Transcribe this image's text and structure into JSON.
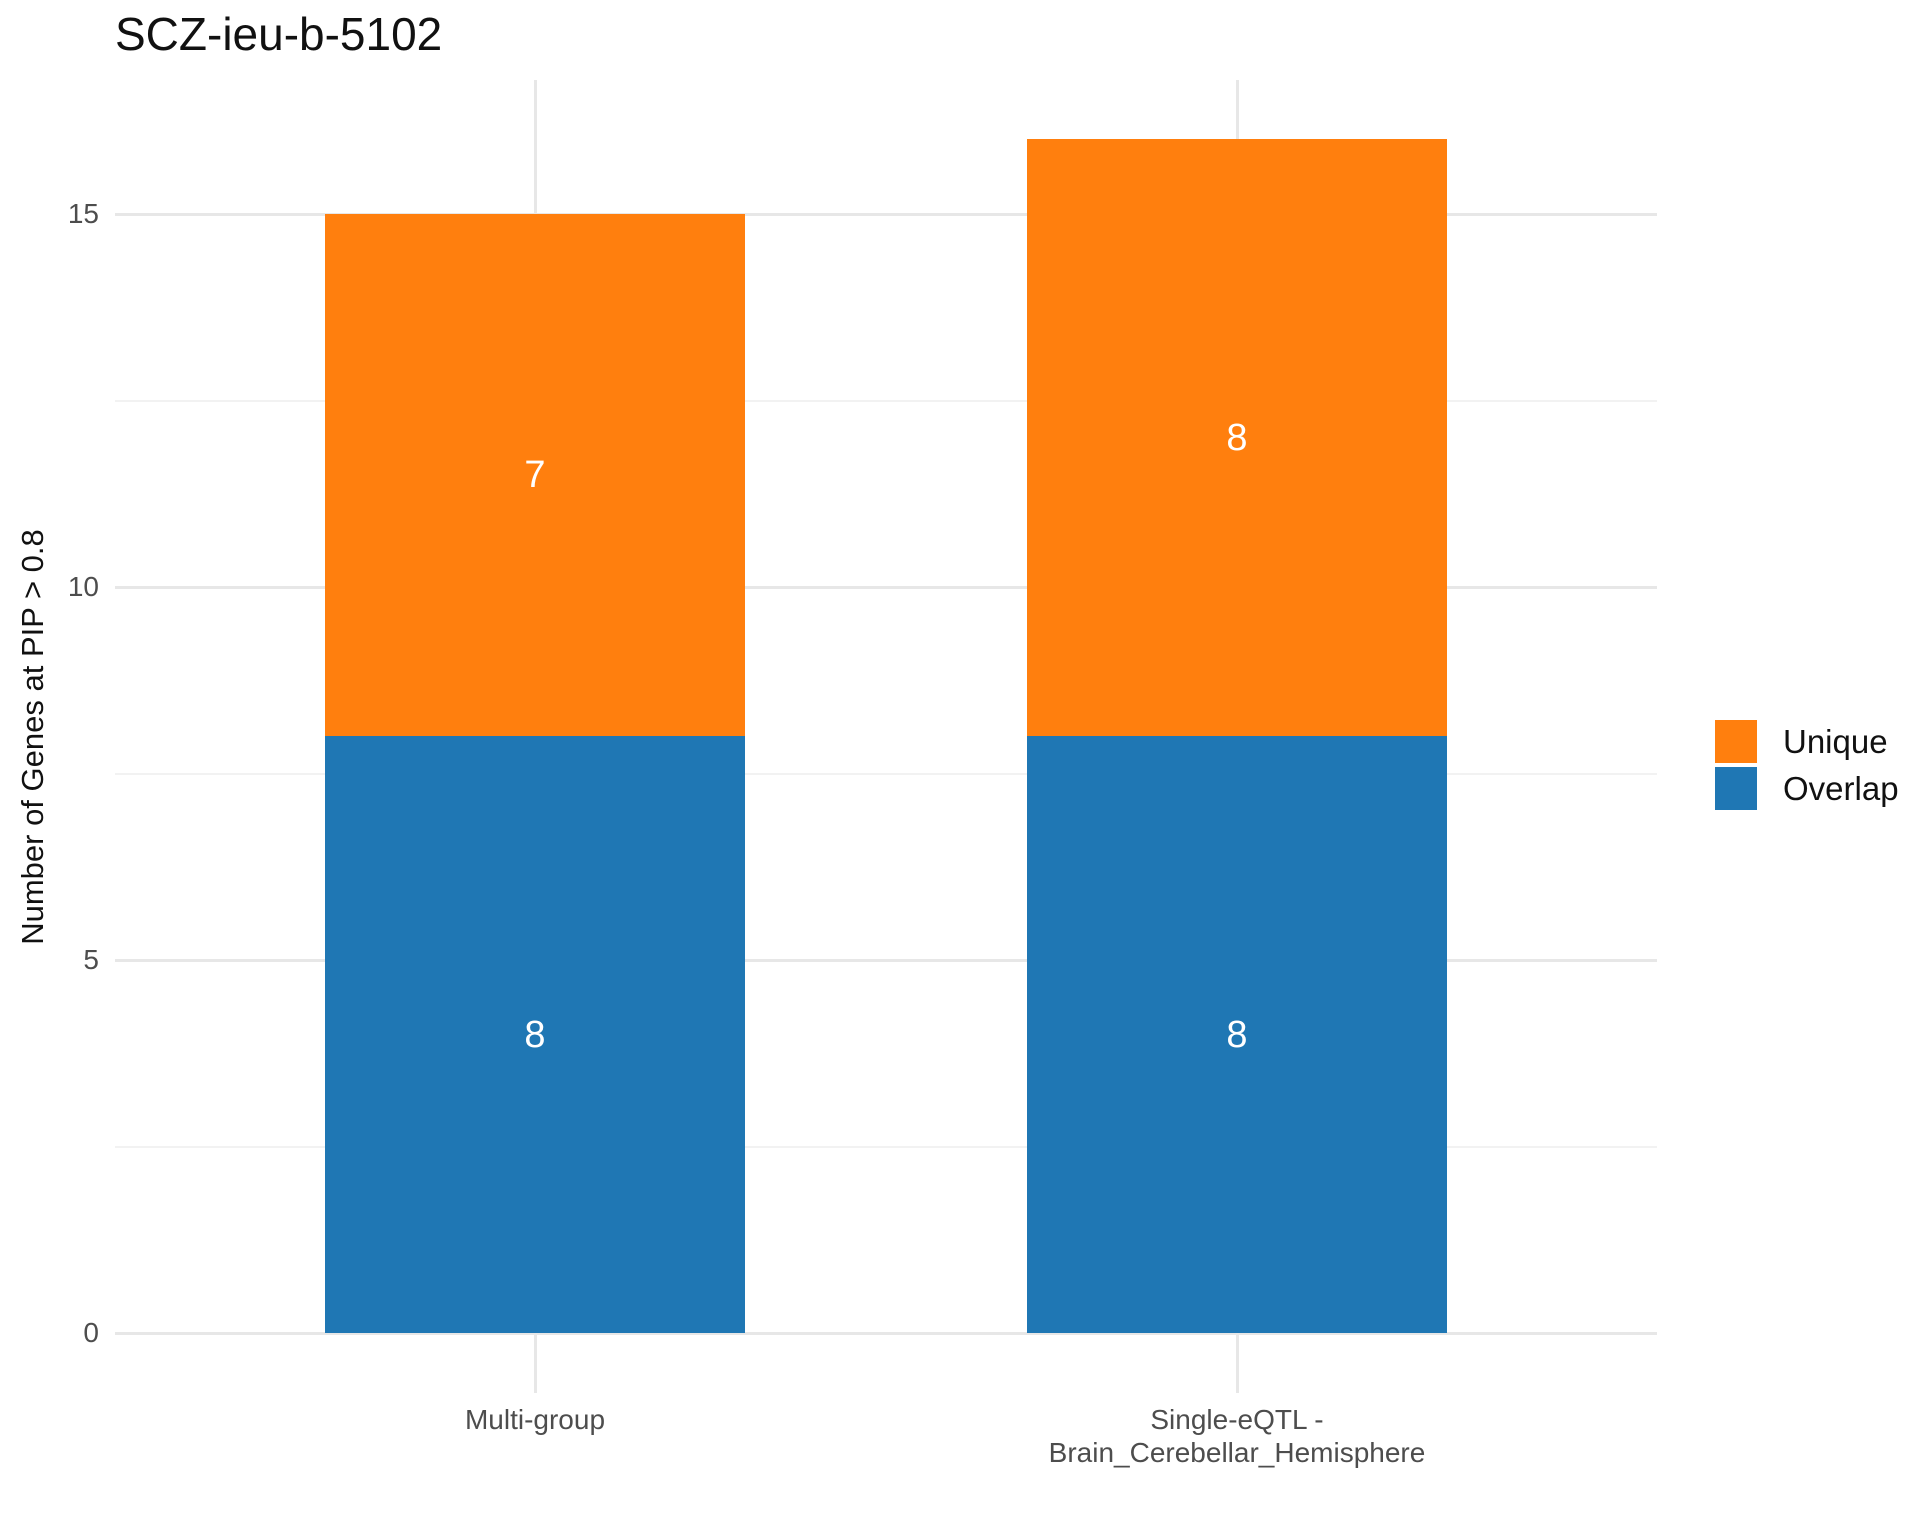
{
  "chart_data": {
    "type": "bar",
    "stacked": true,
    "title": "SCZ-ieu-b-5102",
    "ylabel": "Number of Genes at PIP > 0.8",
    "xlabel": "",
    "categories": [
      "Multi-group",
      "Single-eQTL -\nBrain_Cerebellar_Hemisphere"
    ],
    "series": [
      {
        "name": "Overlap",
        "color": "#1F77B4",
        "values": [
          8,
          8
        ]
      },
      {
        "name": "Unique",
        "color": "#FF7F0E",
        "values": [
          7,
          8
        ]
      }
    ],
    "bar_segment_labels": [
      [
        8,
        7
      ],
      [
        8,
        8
      ]
    ],
    "totals": [
      15,
      16
    ],
    "ylim": [
      0,
      16.8
    ],
    "yticks": [
      0,
      5,
      10,
      15
    ],
    "yticks_minor": [
      2.5,
      7.5,
      12.5
    ],
    "grid": true,
    "legend_position": "right"
  },
  "legend": {
    "items": [
      {
        "label": "Unique",
        "color": "#FF7F0E"
      },
      {
        "label": "Overlap",
        "color": "#1F77B4"
      }
    ]
  },
  "colors": {
    "unique": "#FF7F0E",
    "overlap": "#1F77B4",
    "grid_major": "#e7e7e7",
    "grid_minor": "#f2f2f2",
    "axis_text": "#4d4d4d",
    "title_text": "#111111",
    "bar_label_text": "#ffffff"
  }
}
